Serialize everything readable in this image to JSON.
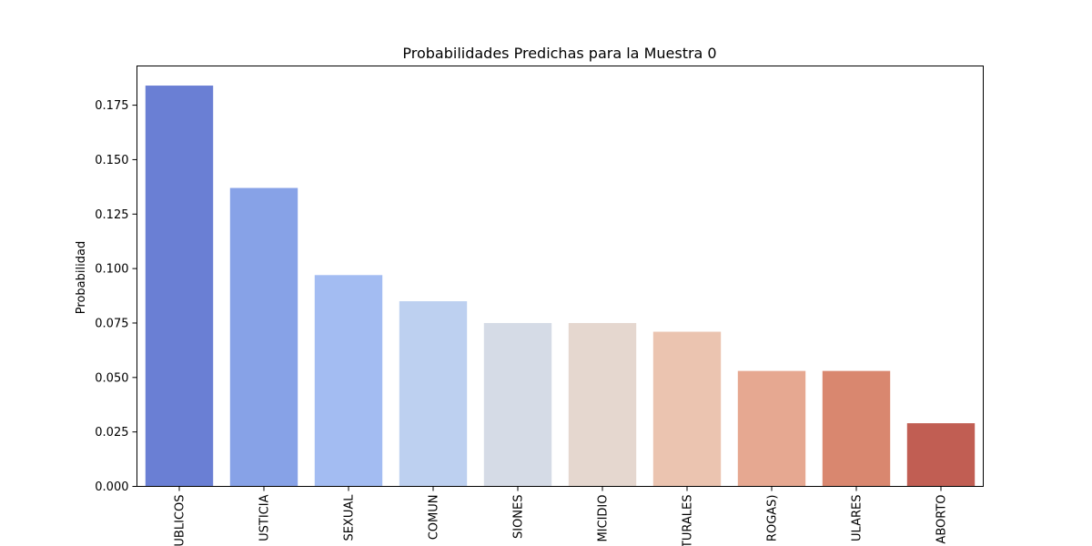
{
  "chart_data": {
    "type": "bar",
    "title": "Probabilidades Predichas para la Muestra 0",
    "xlabel": "",
    "ylabel": "Probabilidad",
    "ylim": [
      0,
      0.193
    ],
    "yticks": [
      "0.000",
      "0.025",
      "0.050",
      "0.075",
      "0.100",
      "0.125",
      "0.150",
      "0.175"
    ],
    "categories": [
      "UBLICOS",
      "USTICIA",
      "SEXUAL",
      "COMUN",
      "SIONES",
      "MICIDIO",
      "TURALES",
      "ROGAS)",
      "ULARES",
      "ABORTO"
    ],
    "values": [
      0.184,
      0.137,
      0.097,
      0.085,
      0.075,
      0.075,
      0.071,
      0.053,
      0.053,
      0.029
    ],
    "colors": [
      "#6a7fd4",
      "#87a2e7",
      "#a3bcf2",
      "#bdd0f0",
      "#d5dbe6",
      "#e5d7cf",
      "#ebc4b0",
      "#e6a891",
      "#d9876f",
      "#c15e53"
    ],
    "grid": false,
    "legend": "none"
  }
}
